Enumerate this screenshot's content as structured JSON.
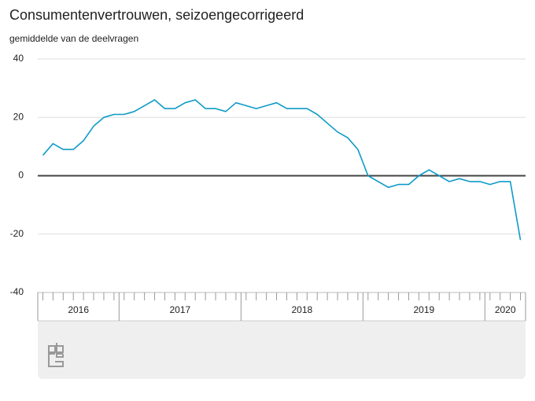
{
  "chart_data": {
    "type": "line",
    "title": "Consumentenvertrouwen, seizoengecorrigeerd",
    "y_label": "gemiddelde van de deelvragen",
    "categories": [
      null,
      null,
      null,
      null,
      null,
      null,
      null,
      null,
      null,
      null,
      null,
      null,
      null,
      null,
      null,
      null,
      null,
      null,
      null,
      null,
      null,
      null,
      null,
      null,
      null,
      null,
      null,
      null,
      null,
      null,
      null,
      null,
      null,
      null,
      null,
      null,
      null,
      null,
      null,
      null,
      null,
      null,
      null,
      null,
      null,
      null,
      null,
      null
    ],
    "x_groups": [
      {
        "label": "2016",
        "start": 0,
        "span": 8
      },
      {
        "label": "2017",
        "start": 8,
        "span": 12
      },
      {
        "label": "2018",
        "start": 20,
        "span": 12
      },
      {
        "label": "2019",
        "start": 32,
        "span": 12
      },
      {
        "label": "2020",
        "start": 44,
        "span": 4
      }
    ],
    "series": [
      {
        "color": "#0e9bc8",
        "values": [
          7,
          11,
          9,
          9,
          12,
          17,
          20,
          21,
          21,
          22,
          24,
          26,
          23,
          23,
          25,
          26,
          23,
          23,
          22,
          25,
          24,
          23,
          24,
          25,
          23,
          23,
          23,
          21,
          18,
          15,
          13,
          9,
          0,
          -2,
          -4,
          -3,
          -3,
          0,
          2,
          0,
          -2,
          -1,
          -2,
          -2,
          -3,
          -2,
          -2,
          -22
        ]
      }
    ],
    "ylim": [
      -40,
      40
    ],
    "yticks": [
      -40,
      -20,
      0,
      20,
      40
    ],
    "grid": true
  }
}
